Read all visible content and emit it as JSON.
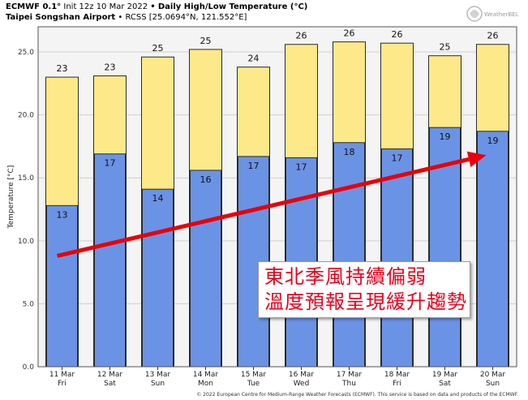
{
  "header": {
    "model": "ECMWF 0.1°",
    "init": "Init 12z 10 Mar 2022",
    "bullet": "•",
    "product": "Daily High/Low Temperature (°C)",
    "station": "Taipei Songshan Airport",
    "station_code": "RCSS [25.0694°N, 121.552°E]"
  },
  "logo": {
    "text": "WeatherBELL"
  },
  "callout": {
    "line1": "東北季風持續偏弱",
    "line2": "溫度預報呈現緩升趨勢"
  },
  "copyright": "© 2022 European Centre for Medium-Range Weather Forecasts (ECMWF). This service is based on data and products of the ECMWF.",
  "colors": {
    "high_bar": "#fde98a",
    "low_bar": "#6a93e6",
    "bar_edge": "#2b2b2b",
    "plot_bg": "#f4f4f4",
    "grid": "#cfcfcf",
    "arrow": "#e8000a"
  },
  "chart_data": {
    "type": "bar",
    "ylabel": "Temperature [°C]",
    "ylim": [
      0,
      27
    ],
    "yticks": [
      0.0,
      5.0,
      10.0,
      15.0,
      20.0,
      25.0
    ],
    "ytick_labels": [
      "0.0",
      "5.0",
      "10.0",
      "15.0",
      "20.0",
      "25.0"
    ],
    "grid": true,
    "categories": [
      "11 Mar",
      "12 Mar",
      "13 Mar",
      "14 Mar",
      "15 Mar",
      "16 Mar",
      "17 Mar",
      "18 Mar",
      "19 Mar",
      "20 Mar"
    ],
    "days": [
      "Fri",
      "Sat",
      "Sun",
      "Mon",
      "Tue",
      "Wed",
      "Thu",
      "Fri",
      "Sat",
      "Sun"
    ],
    "series": [
      {
        "key": "high",
        "values": [
          23.0,
          23.1,
          24.6,
          25.2,
          23.8,
          25.6,
          25.8,
          25.7,
          24.7,
          25.6
        ],
        "labels": [
          "23",
          "23",
          "25",
          "25",
          "24",
          "26",
          "26",
          "26",
          "25",
          "26"
        ]
      },
      {
        "key": "low",
        "values": [
          12.8,
          16.9,
          14.1,
          15.6,
          16.7,
          16.6,
          17.8,
          17.3,
          19.0,
          18.7
        ],
        "labels": [
          "13",
          "17",
          "14",
          "16",
          "17",
          "17",
          "18",
          "17",
          "19",
          "19"
        ]
      }
    ],
    "trend_arrow": {
      "from": [
        0,
        8.8
      ],
      "to": [
        9,
        16.8
      ]
    }
  }
}
